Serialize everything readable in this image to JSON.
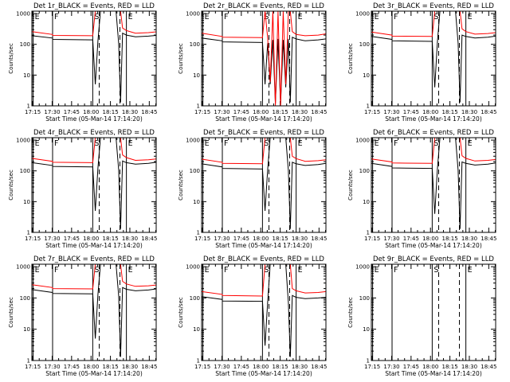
{
  "figure": {
    "xlabel": "Start Time (05-Mar-14 17:14:20)",
    "ylabel": "Counts/sec",
    "x_ticks": [
      "17:15",
      "17:30",
      "17:45",
      "18:00",
      "18:15",
      "18:30",
      "18:45"
    ],
    "y_ticks": [
      "1",
      "10",
      "100",
      "1000"
    ],
    "markers": [
      "E",
      "F",
      "S",
      "E"
    ],
    "colors": {
      "events": "#000000",
      "lld": "#ff0000",
      "axes": "#000000",
      "background": "#ffffff"
    }
  },
  "chart_data": [
    {
      "type": "line",
      "detector": "1r",
      "title": "Det 1r_BLACK = Events, RED = LLD",
      "xlabel": "Start Time (05-Mar-14 17:14:20)",
      "ylabel": "Counts/sec",
      "xlim_minutes": [
        0,
        96
      ],
      "ylim": [
        1,
        1200
      ],
      "yscale": "log",
      "marker_times_min": [
        1,
        16,
        47,
        73
      ],
      "dashed_times_min": [
        52,
        68
      ],
      "series": [
        {
          "name": "Events",
          "color": "black",
          "x": [
            0,
            15.9,
            16.1,
            47,
            49,
            51,
            53,
            55,
            57,
            59,
            61,
            63,
            65,
            67,
            68.5,
            70,
            73,
            80,
            90,
            96
          ],
          "y": [
            190,
            160,
            145,
            140,
            5,
            130,
            1200,
            1200,
            1200,
            1200,
            1200,
            1200,
            1200,
            110,
            1.3,
            230,
            200,
            175,
            185,
            195
          ]
        },
        {
          "name": "LLD",
          "color": "red",
          "x": [
            0,
            15.9,
            16.1,
            47,
            49,
            51,
            53,
            55,
            57,
            59,
            61,
            63,
            65,
            67,
            68.5,
            70,
            73,
            80,
            90,
            96
          ],
          "y": [
            260,
            210,
            195,
            190,
            1200,
            1200,
            1200,
            1200,
            1200,
            1200,
            1200,
            1200,
            1200,
            1200,
            1200,
            340,
            280,
            230,
            240,
            255
          ]
        }
      ]
    },
    {
      "type": "line",
      "detector": "2r",
      "title": "Det 2r_BLACK = Events, RED = LLD",
      "xlabel": "Start Time (05-Mar-14 17:14:20)",
      "ylabel": "Counts/sec",
      "xlim_minutes": [
        0,
        96
      ],
      "ylim": [
        1,
        1200
      ],
      "yscale": "log",
      "marker_times_min": [
        1,
        16,
        47,
        73
      ],
      "dashed_times_min": [
        52,
        68
      ],
      "series": [
        {
          "name": "Events",
          "color": "black",
          "x": [
            0,
            15.9,
            16.1,
            47,
            49,
            51,
            53,
            55,
            57,
            59,
            61,
            63,
            65,
            67,
            68.5,
            70,
            73,
            80,
            90,
            96
          ],
          "y": [
            160,
            130,
            120,
            115,
            5,
            110,
            5,
            140,
            1.2,
            150,
            1.1,
            140,
            4,
            150,
            1.3,
            170,
            150,
            130,
            140,
            150
          ]
        },
        {
          "name": "LLD",
          "color": "red",
          "x": [
            0,
            15.9,
            16.1,
            47,
            49,
            51,
            53,
            55,
            57,
            59,
            61,
            63,
            65,
            67,
            68.5,
            70,
            73,
            80,
            90,
            96
          ],
          "y": [
            230,
            180,
            170,
            165,
            1200,
            160,
            6,
            1200,
            1,
            1200,
            1,
            1200,
            5,
            1200,
            1200,
            260,
            210,
            190,
            200,
            220
          ]
        }
      ]
    },
    {
      "type": "line",
      "detector": "3r",
      "title": "Det 3r_BLACK = Events, RED = LLD",
      "xlabel": "Start Time (05-Mar-14 17:14:20)",
      "ylabel": "Counts/sec",
      "xlim_minutes": [
        0,
        96
      ],
      "ylim": [
        1,
        1200
      ],
      "yscale": "log",
      "marker_times_min": [
        1,
        16,
        47,
        73
      ],
      "dashed_times_min": [
        52,
        68
      ],
      "series": [
        {
          "name": "Events",
          "color": "black",
          "x": [
            0,
            15.9,
            16.1,
            47,
            49,
            51,
            53,
            55,
            57,
            59,
            61,
            63,
            65,
            67,
            68.5,
            70,
            73,
            80,
            90,
            96
          ],
          "y": [
            180,
            145,
            130,
            125,
            4,
            120,
            1200,
            1200,
            1200,
            1200,
            1200,
            1200,
            1200,
            110,
            1.3,
            200,
            180,
            160,
            170,
            185
          ]
        },
        {
          "name": "LLD",
          "color": "red",
          "x": [
            0,
            15.9,
            16.1,
            47,
            49,
            51,
            53,
            55,
            57,
            59,
            61,
            63,
            65,
            67,
            68.5,
            70,
            73,
            80,
            90,
            96
          ],
          "y": [
            250,
            200,
            185,
            180,
            1200,
            1200,
            1200,
            1200,
            1200,
            1200,
            1200,
            1200,
            1200,
            1200,
            1200,
            320,
            260,
            215,
            225,
            240
          ]
        }
      ]
    },
    {
      "type": "line",
      "detector": "4r",
      "title": "Det 4r_BLACK = Events, RED = LLD",
      "xlabel": "Start Time (05-Mar-14 17:14:20)",
      "ylabel": "Counts/sec",
      "xlim_minutes": [
        0,
        96
      ],
      "ylim": [
        1,
        1200
      ],
      "yscale": "log",
      "marker_times_min": [
        1,
        16,
        47,
        73
      ],
      "dashed_times_min": [
        52,
        68
      ],
      "series": [
        {
          "name": "Events",
          "color": "black",
          "x": [
            0,
            15.9,
            16.1,
            47,
            49,
            51,
            53,
            55,
            57,
            59,
            61,
            63,
            65,
            67,
            68.5,
            70,
            73,
            80,
            90,
            96
          ],
          "y": [
            185,
            150,
            140,
            135,
            5,
            125,
            1200,
            1200,
            1200,
            1200,
            1200,
            1200,
            1200,
            110,
            1.3,
            210,
            185,
            165,
            175,
            190
          ]
        },
        {
          "name": "LLD",
          "color": "red",
          "x": [
            0,
            15.9,
            16.1,
            47,
            49,
            51,
            53,
            55,
            57,
            59,
            61,
            63,
            65,
            67,
            68.5,
            70,
            73,
            80,
            90,
            96
          ],
          "y": [
            255,
            205,
            190,
            185,
            1200,
            1200,
            1200,
            1200,
            1200,
            1200,
            1200,
            1200,
            1200,
            1200,
            1200,
            330,
            270,
            220,
            230,
            245
          ]
        }
      ]
    },
    {
      "type": "line",
      "detector": "5r",
      "title": "Det 5r_BLACK = Events, RED = LLD",
      "xlabel": "Start Time (05-Mar-14 17:14:20)",
      "ylabel": "Counts/sec",
      "xlim_minutes": [
        0,
        96
      ],
      "ylim": [
        1,
        1200
      ],
      "yscale": "log",
      "marker_times_min": [
        1,
        16,
        47,
        73
      ],
      "dashed_times_min": [
        52,
        68
      ],
      "series": [
        {
          "name": "Events",
          "color": "black",
          "x": [
            0,
            15.9,
            16.1,
            47,
            49,
            51,
            53,
            55,
            57,
            59,
            61,
            63,
            65,
            67,
            68.5,
            70,
            73,
            80,
            90,
            96
          ],
          "y": [
            170,
            135,
            120,
            115,
            5,
            110,
            1200,
            1200,
            1200,
            1200,
            1200,
            1200,
            1200,
            100,
            1.3,
            190,
            170,
            150,
            160,
            175
          ]
        },
        {
          "name": "LLD",
          "color": "red",
          "x": [
            0,
            15.9,
            16.1,
            47,
            49,
            51,
            53,
            55,
            57,
            59,
            61,
            63,
            65,
            67,
            68.5,
            70,
            73,
            80,
            90,
            96
          ],
          "y": [
            240,
            190,
            175,
            170,
            1200,
            1200,
            1200,
            1200,
            1200,
            1200,
            1200,
            1200,
            1200,
            1200,
            1200,
            300,
            250,
            205,
            215,
            230
          ]
        }
      ]
    },
    {
      "type": "line",
      "detector": "6r",
      "title": "Det 6r_BLACK = Events, RED = LLD",
      "xlabel": "Start Time (05-Mar-14 17:14:20)",
      "ylabel": "Counts/sec",
      "xlim_minutes": [
        0,
        96
      ],
      "ylim": [
        1,
        1200
      ],
      "yscale": "log",
      "marker_times_min": [
        1,
        16,
        47,
        73
      ],
      "dashed_times_min": [
        52,
        68
      ],
      "series": [
        {
          "name": "Events",
          "color": "black",
          "x": [
            0,
            15.9,
            16.1,
            47,
            49,
            51,
            53,
            55,
            57,
            59,
            61,
            63,
            65,
            67,
            68.5,
            70,
            73,
            80,
            90,
            96
          ],
          "y": [
            175,
            140,
            125,
            120,
            4,
            115,
            1200,
            1200,
            1200,
            1200,
            1200,
            1200,
            1200,
            105,
            1.3,
            195,
            175,
            155,
            165,
            180
          ]
        },
        {
          "name": "LLD",
          "color": "red",
          "x": [
            0,
            15.9,
            16.1,
            47,
            49,
            51,
            53,
            55,
            57,
            59,
            61,
            63,
            65,
            67,
            68.5,
            70,
            73,
            80,
            90,
            96
          ],
          "y": [
            245,
            195,
            180,
            175,
            1200,
            1200,
            1200,
            1200,
            1200,
            1200,
            1200,
            1200,
            1200,
            1200,
            1200,
            310,
            255,
            210,
            220,
            235
          ]
        }
      ]
    },
    {
      "type": "line",
      "detector": "7r",
      "title": "Det 7r_BLACK = Events, RED = LLD",
      "xlabel": "Start Time (05-Mar-14 17:14:20)",
      "ylabel": "Counts/sec",
      "xlim_minutes": [
        0,
        96
      ],
      "ylim": [
        1,
        1200
      ],
      "yscale": "log",
      "marker_times_min": [
        1,
        16,
        47,
        73
      ],
      "dashed_times_min": [
        52,
        68
      ],
      "series": [
        {
          "name": "Events",
          "color": "black",
          "x": [
            0,
            15.9,
            16.1,
            47,
            49,
            51,
            53,
            55,
            57,
            59,
            61,
            63,
            65,
            67,
            68.5,
            70,
            73,
            80,
            90,
            96
          ],
          "y": [
            185,
            150,
            140,
            135,
            5,
            130,
            1200,
            1200,
            1200,
            1200,
            1200,
            1200,
            1200,
            120,
            1.3,
            215,
            190,
            170,
            180,
            195
          ]
        },
        {
          "name": "LLD",
          "color": "red",
          "x": [
            0,
            15.9,
            16.1,
            47,
            49,
            51,
            53,
            55,
            57,
            59,
            61,
            63,
            65,
            67,
            68.5,
            70,
            73,
            80,
            90,
            96
          ],
          "y": [
            265,
            215,
            200,
            195,
            1200,
            1200,
            1200,
            1200,
            1200,
            1200,
            1200,
            1200,
            1200,
            1200,
            1200,
            340,
            280,
            235,
            245,
            260
          ]
        }
      ]
    },
    {
      "type": "line",
      "detector": "8r",
      "title": "Det 8r_BLACK = Events, RED = LLD",
      "xlabel": "Start Time (05-Mar-14 17:14:20)",
      "ylabel": "Counts/sec",
      "xlim_minutes": [
        0,
        96
      ],
      "ylim": [
        1,
        1200
      ],
      "yscale": "log",
      "marker_times_min": [
        1,
        16,
        47,
        73
      ],
      "dashed_times_min": [
        52,
        68
      ],
      "series": [
        {
          "name": "Events",
          "color": "black",
          "x": [
            0,
            15.9,
            16.1,
            47,
            49,
            51,
            53,
            55,
            57,
            59,
            61,
            63,
            65,
            67,
            68.5,
            70,
            73,
            80,
            90,
            96
          ],
          "y": [
            110,
            90,
            80,
            78,
            3,
            75,
            1200,
            1200,
            1200,
            1200,
            1200,
            1200,
            1200,
            70,
            1.3,
            120,
            105,
            95,
            100,
            105
          ]
        },
        {
          "name": "LLD",
          "color": "red",
          "x": [
            0,
            15.9,
            16.1,
            47,
            49,
            51,
            53,
            55,
            57,
            59,
            61,
            63,
            65,
            67,
            68.5,
            70,
            73,
            80,
            90,
            96
          ],
          "y": [
            160,
            130,
            120,
            115,
            1200,
            1200,
            1200,
            1200,
            1200,
            1200,
            1200,
            1200,
            1200,
            1200,
            1200,
            200,
            170,
            145,
            150,
            160
          ]
        }
      ]
    },
    {
      "type": "line",
      "detector": "9r",
      "title": "Det 9r_BLACK = Events, RED = LLD",
      "xlabel": "Start Time (05-Mar-14 17:14:20)",
      "ylabel": "Counts/sec",
      "xlim_minutes": [
        0,
        96
      ],
      "ylim": [
        1,
        1200
      ],
      "yscale": "log",
      "marker_times_min": [
        1,
        16,
        47,
        73
      ],
      "dashed_times_min": [
        52,
        68
      ],
      "series": []
    }
  ]
}
